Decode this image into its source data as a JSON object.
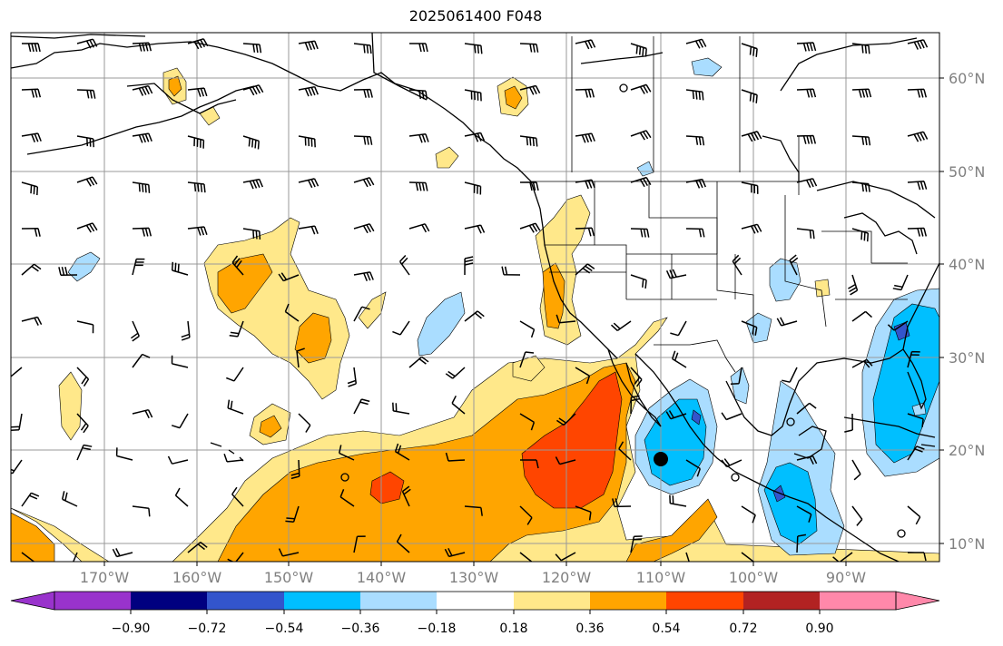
{
  "title": "2025061400 F048",
  "map": {
    "longitude_labels": [
      "170°W",
      "160°W",
      "150°W",
      "140°W",
      "130°W",
      "120°W",
      "110°W",
      "100°W",
      "90°W"
    ],
    "latitude_labels": [
      "60°N",
      "50°N",
      "40°N",
      "30°N",
      "20°N",
      "10°N"
    ],
    "gridlines": true,
    "projection": "equirectangular"
  },
  "colorbar": {
    "tick_labels": [
      "−0.90",
      "−0.72",
      "−0.54",
      "−0.36",
      "−0.18",
      "0.18",
      "0.36",
      "0.54",
      "0.72",
      "0.90"
    ],
    "colors": [
      "#9933cc",
      "#000080",
      "#3355cc",
      "#00bfff",
      "#aaddff",
      "#ffffff",
      "#ffe88a",
      "#ffa500",
      "#ff4500",
      "#b22222",
      "#ff88aa"
    ],
    "extend": "both"
  },
  "legend_colors": {
    "coast": "#000000",
    "grid": "#999999",
    "barb": "#000000"
  }
}
